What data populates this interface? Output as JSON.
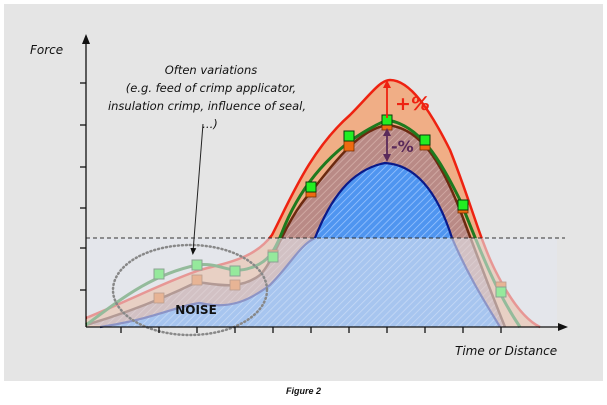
{
  "axes": {
    "ylabel": "Force",
    "xlabel": "Time or Distance"
  },
  "annotation": {
    "lines": [
      "Often variations",
      "(e.g. feed of crimp applicator,",
      "insulation crimp, influence of seal,",
      "...)"
    ]
  },
  "noise_label": "NOISE",
  "plus_label": "+%",
  "minus_label": "-%",
  "caption": "Figure 2",
  "colors": {
    "upper": "#ee2211",
    "nominal": "#1e7a1e",
    "measured": "#6b2a10",
    "lower": "#0a1a8a",
    "marker_green": "#22ee22",
    "marker_orange": "#ee6a10"
  }
}
